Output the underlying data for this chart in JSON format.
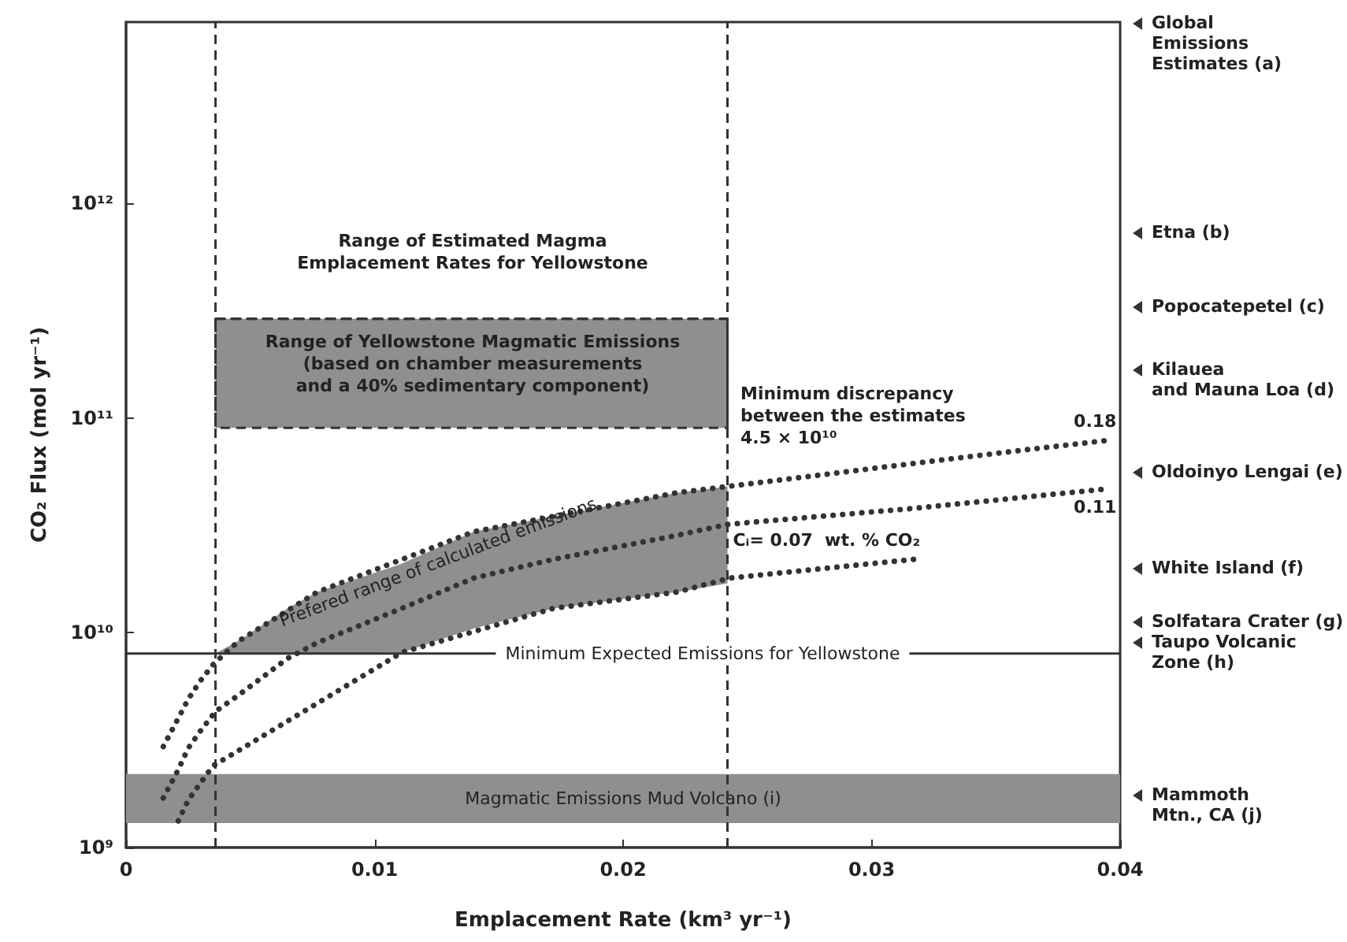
{
  "chart_data": {
    "type": "line",
    "xlabel": "Emplacement Rate (km³ yr⁻¹)",
    "ylabel": "CO₂ Flux (mol yr⁻¹)",
    "log": "y",
    "line_style": "dotted",
    "marker": "none",
    "xlim": [
      0,
      0.04
    ],
    "xticks": [
      0,
      0.01,
      0.02,
      0.03,
      0.04
    ],
    "ylim": [
      1000000000.0,
      7000000000000.0
    ],
    "yticks": [
      {
        "value": 1000000000.0,
        "label": "10⁹"
      },
      {
        "value": 10000000000.0,
        "label": "10¹⁰"
      },
      {
        "value": 100000000000.0,
        "label": "10¹¹"
      },
      {
        "value": 1000000000000.0,
        "label": "10¹²"
      }
    ],
    "series": [
      {
        "name": "0.18",
        "color": "#333333",
        "x": [
          0.0015,
          0.0021,
          0.0025,
          0.003,
          0.0035,
          0.0045,
          0.0077,
          0.014,
          0.0222,
          0.0242,
          0.0304,
          0.0361,
          0.0396
        ],
        "values": [
          2950000000.0,
          4000000000.0,
          4900000000.0,
          6000000000.0,
          7100000000.0,
          9100000000.0,
          15500000000.0,
          29600000000.0,
          45000000000.0,
          48000000000.0,
          59000000000.0,
          71000000000.0,
          79000000000.0
        ]
      },
      {
        "name": "0.11",
        "color": "#333333",
        "x": [
          0.0015,
          0.0021,
          0.0025,
          0.003,
          0.0036,
          0.0046,
          0.0065,
          0.0077,
          0.0111,
          0.014,
          0.0172,
          0.0222,
          0.0242,
          0.0317,
          0.0396
        ],
        "values": [
          1700000000.0,
          2300000000.0,
          2900000000.0,
          3500000000.0,
          4300000000.0,
          5200000000.0,
          7600000000.0,
          9000000000.0,
          13000000000.0,
          18000000000.0,
          22000000000.0,
          28500000000.0,
          32000000000.0,
          38000000000.0,
          47000000000.0
        ],
        "lower": [
          null,
          null,
          null,
          null,
          8000000000.0,
          8000000000.0,
          8000000000.0,
          8000000000.0,
          8100000000.0,
          10500000000.0,
          13000000000.0,
          15500000000.0,
          17000000000.0,
          null,
          null
        ],
        "upper": [
          null,
          null,
          null,
          null,
          8000000000.0,
          9300000000.0,
          13000000000.0,
          15500000000.0,
          21000000000.0,
          29600000000.0,
          35000000000.0,
          45000000000.0,
          48000000000.0,
          null,
          null
        ]
      },
      {
        "name": "Cᵢ= 0.07  wt. % CO₂",
        "color": "#333333",
        "x": [
          0.0021,
          0.0025,
          0.003,
          0.0035,
          0.0077,
          0.0111,
          0.0172,
          0.0222,
          0.0243,
          0.0317
        ],
        "values": [
          1330000000.0,
          1660000000.0,
          2000000000.0,
          2400000000.0,
          4700000000.0,
          8100000000.0,
          13000000000.0,
          15500000000.0,
          18000000000.0,
          22000000000.0
        ]
      },
      {
        "color": "#333333",
        "line_style": "dashed",
        "x": [
          0.0036,
          0.0242
        ],
        "values": [
          290000000000.0,
          290000000000.0
        ],
        "lower": [
          90000000000.0,
          90000000000.0
        ],
        "upper": [
          290000000000.0,
          290000000000.0
        ]
      }
    ],
    "ref_lines": [
      {
        "axis": "y",
        "value": 8000000000.0,
        "label": "Minimum Expected Emissions for Yellowstone",
        "color": "#333333",
        "line_style": "solid"
      },
      {
        "axis": "x",
        "value": 0.0036,
        "label": null,
        "color": "#333333",
        "line_style": "dashed"
      },
      {
        "axis": "x",
        "value": 0.0242,
        "label": null,
        "color": "#333333",
        "line_style": "dashed"
      }
    ],
    "bands": [
      {
        "axis": "y",
        "from": 1300000000.0,
        "to": 2200000000.0,
        "label": "Magmatic Emissions Mud Volcano (i)",
        "color": "#8f8f8f"
      }
    ],
    "annotations": [
      "Range of Estimated Magma\nEmplacement Rates for Yellowstone",
      "Range of Yellowstone Magmatic Emissions\n(based on chamber measurements\nand a 40% sedimentary component)",
      "Minimum discrepancy\nbetween the estimates\n4.5 × 10¹⁰",
      "Prefered range of calculated emissions",
      "Global\nEmissions\nEstimates (a)",
      "Etna (b)",
      "Popocatepetel (c)",
      "Kilauea\nand Mauna Loa (d)",
      "Oldoinyo Lengai (e)",
      "White Island (f)",
      "Solfatara Crater (g)",
      "Taupo Volcanic\nZone (h)",
      "Mammoth\nMtn., CA (j)"
    ]
  }
}
